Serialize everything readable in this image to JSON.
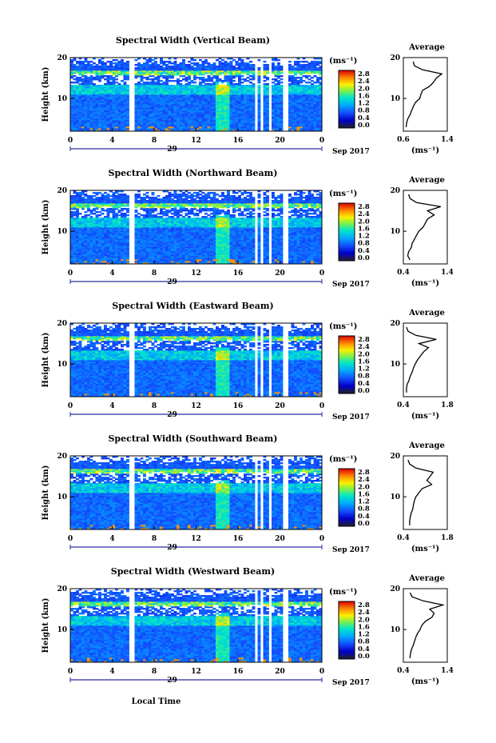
{
  "chart_data": {
    "type": "heatmap",
    "date_label": "Sep 2017",
    "day_label": "29",
    "xlabel_bottom": "Local Time",
    "x_ticks": [
      "0",
      "4",
      "8",
      "12",
      "16",
      "20",
      "0"
    ],
    "y_ticks": [
      "20",
      "10"
    ],
    "ylabel": "Height (km)",
    "xlim": [
      0,
      24
    ],
    "ylim": [
      2,
      20
    ],
    "colorbar": {
      "unit": "(ms⁻¹)",
      "ticks": [
        "2.8",
        "2.4",
        "2.0",
        "1.6",
        "1.2",
        "0.8",
        "0.4",
        "0.0"
      ],
      "range": [
        0.0,
        3.0
      ]
    },
    "data_gaps_hours": [
      [
        5.7,
        6.2
      ],
      [
        17.5,
        17.8
      ],
      [
        18.2,
        18.5
      ],
      [
        19.0,
        19.3
      ],
      [
        20.3,
        20.8
      ]
    ],
    "panels": [
      {
        "title": "Spectral Width (Vertical Beam)",
        "avg_title": "Average",
        "avg_xticks": [
          "0.6",
          "1.4"
        ],
        "avg_xlim": [
          0.6,
          1.4
        ],
        "avg_profile": {
          "height_km": [
            3,
            4,
            5,
            6,
            7,
            8,
            9,
            10,
            11,
            12,
            13,
            14,
            15,
            16,
            17,
            18,
            19
          ],
          "value": [
            0.65,
            0.66,
            0.68,
            0.72,
            0.75,
            0.78,
            0.82,
            0.9,
            0.92,
            0.95,
            1.08,
            1.15,
            1.2,
            1.3,
            0.95,
            0.8,
            0.78
          ]
        }
      },
      {
        "title": "Spectral Width (Northward Beam)",
        "avg_title": "Average",
        "avg_xticks": [
          "0.4",
          "1.4"
        ],
        "avg_xlim": [
          0.4,
          1.4
        ],
        "avg_profile": {
          "height_km": [
            3,
            4,
            5,
            6,
            7,
            8,
            9,
            10,
            11,
            12,
            13,
            14,
            15,
            16,
            17,
            18,
            19
          ],
          "value": [
            0.55,
            0.5,
            0.52,
            0.58,
            0.6,
            0.65,
            0.7,
            0.75,
            0.85,
            0.9,
            0.95,
            1.1,
            0.95,
            1.25,
            0.7,
            0.55,
            0.52
          ]
        }
      },
      {
        "title": "Spectral Width (Eastward Beam)",
        "avg_title": "Average",
        "avg_xticks": [
          "0.4",
          "1.8"
        ],
        "avg_xlim": [
          0.4,
          1.8
        ],
        "avg_profile": {
          "height_km": [
            3,
            4,
            5,
            6,
            7,
            8,
            9,
            10,
            11,
            12,
            13,
            14,
            15,
            16,
            17,
            18,
            19
          ],
          "value": [
            0.5,
            0.5,
            0.52,
            0.58,
            0.62,
            0.68,
            0.72,
            0.78,
            0.85,
            0.95,
            1.05,
            1.2,
            0.9,
            1.45,
            0.8,
            0.55,
            0.5
          ]
        }
      },
      {
        "title": "Spectral Width (Southward Beam)",
        "avg_title": "Average",
        "avg_xticks": [
          "0.4",
          "1.8"
        ],
        "avg_xlim": [
          0.4,
          1.8
        ],
        "avg_profile": {
          "height_km": [
            3,
            4,
            5,
            6,
            7,
            8,
            9,
            10,
            11,
            12,
            13,
            14,
            15,
            16,
            17,
            18,
            19
          ],
          "value": [
            0.6,
            0.6,
            0.62,
            0.65,
            0.7,
            0.72,
            0.75,
            0.8,
            0.9,
            1.0,
            1.3,
            1.15,
            1.25,
            1.35,
            0.8,
            0.6,
            0.55
          ]
        }
      },
      {
        "title": "Spectral Width (Westward Beam)",
        "avg_title": "Average",
        "avg_xticks": [
          "0.4",
          "1.4"
        ],
        "avg_xlim": [
          0.4,
          1.4
        ],
        "avg_profile": {
          "height_km": [
            3,
            4,
            5,
            6,
            7,
            8,
            9,
            10,
            11,
            12,
            13,
            14,
            15,
            16,
            17,
            18,
            19
          ],
          "value": [
            0.55,
            0.56,
            0.58,
            0.62,
            0.65,
            0.68,
            0.72,
            0.78,
            0.82,
            0.9,
            1.05,
            1.1,
            1.0,
            1.3,
            0.85,
            0.6,
            0.55
          ]
        }
      }
    ]
  }
}
